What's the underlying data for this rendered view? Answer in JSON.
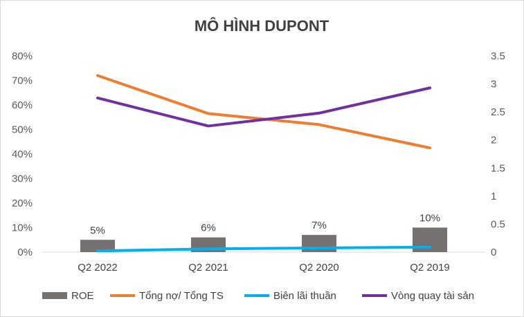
{
  "chart_data": {
    "type": "bar",
    "title": "MÔ HÌNH DUPONT",
    "categories": [
      "Q2 2022",
      "Q2 2021",
      "Q2 2020",
      "Q2 2019"
    ],
    "left_axis": {
      "ticks": [
        "0%",
        "10%",
        "20%",
        "30%",
        "40%",
        "50%",
        "60%",
        "70%",
        "80%"
      ],
      "range": [
        0,
        0.8
      ]
    },
    "right_axis": {
      "ticks": [
        "0",
        "0.5",
        "1",
        "1.5",
        "2",
        "2.5",
        "3",
        "3.5"
      ],
      "range": [
        0,
        3.5
      ]
    },
    "series": [
      {
        "name": "ROE",
        "type": "bar",
        "axis": "left",
        "color": "#767171",
        "values": [
          0.05,
          0.06,
          0.07,
          0.1
        ],
        "labels": [
          "5%",
          "6%",
          "7%",
          "10%"
        ]
      },
      {
        "name": "Tổng nợ/ Tổng TS",
        "type": "line",
        "axis": "left",
        "color": "#ED7D31",
        "values": [
          0.72,
          0.565,
          0.52,
          0.425
        ]
      },
      {
        "name": "Biên lãi thuần",
        "type": "line",
        "axis": "left",
        "color": "#00B0F0",
        "values": [
          0.005,
          0.013,
          0.017,
          0.02
        ]
      },
      {
        "name": "Vòng quay tài sản",
        "type": "line",
        "axis": "right",
        "color": "#7030A0",
        "values": [
          2.75,
          2.25,
          2.48,
          2.93
        ]
      }
    ],
    "grid": false,
    "legend_position": "bottom"
  }
}
